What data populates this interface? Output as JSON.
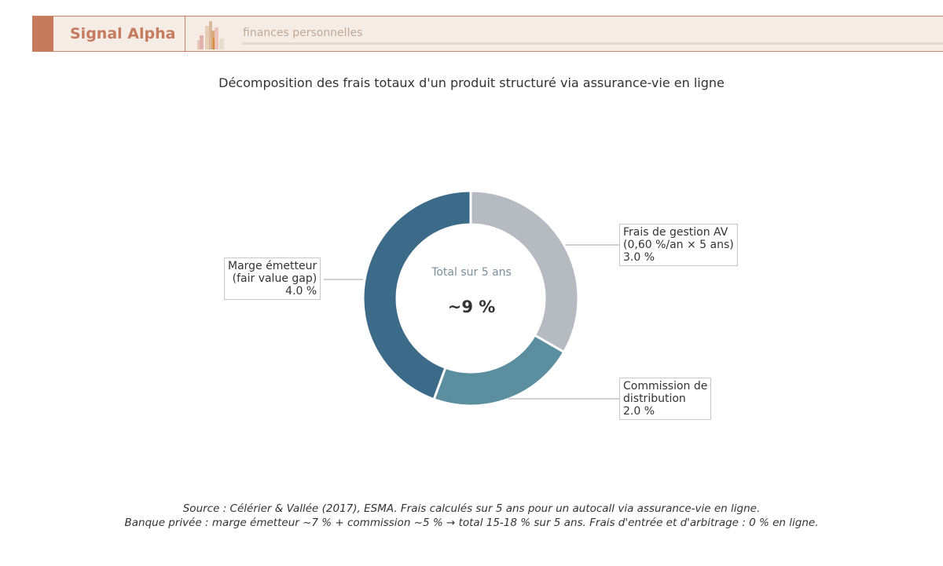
{
  "header": {
    "brand": "Signal Alpha",
    "subtitle": "finances personnelles"
  },
  "chart_data": {
    "type": "pie",
    "donut": true,
    "title": "Décomposition des frais totaux d'un produit structuré via assurance-vie en ligne",
    "center_label": "Total sur 5 ans",
    "center_value": "~9 %",
    "slices": [
      {
        "label": "Frais de gestion AV\n(0,60 %/an × 5 ans)\n3.0 %",
        "value": 3.0,
        "color": "#b6bbc2"
      },
      {
        "label": "Commission de\ndistribution\n2.0 %",
        "value": 2.0,
        "color": "#5b8fa0"
      },
      {
        "label": "Marge émetteur\n(fair value gap)\n4.0 %",
        "value": 4.0,
        "color": "#3b6b88"
      }
    ]
  },
  "footer": {
    "line1": "Source : Célérier & Vallée (2017), ESMA. Frais calculés sur 5 ans pour un autocall via assurance-vie en ligne.",
    "line2": "Banque privée : marge émetteur ~7 % + commission ~5 % → total 15-18 % sur 5 ans. Frais d'entrée et d'arbitrage : 0 % en ligne."
  }
}
